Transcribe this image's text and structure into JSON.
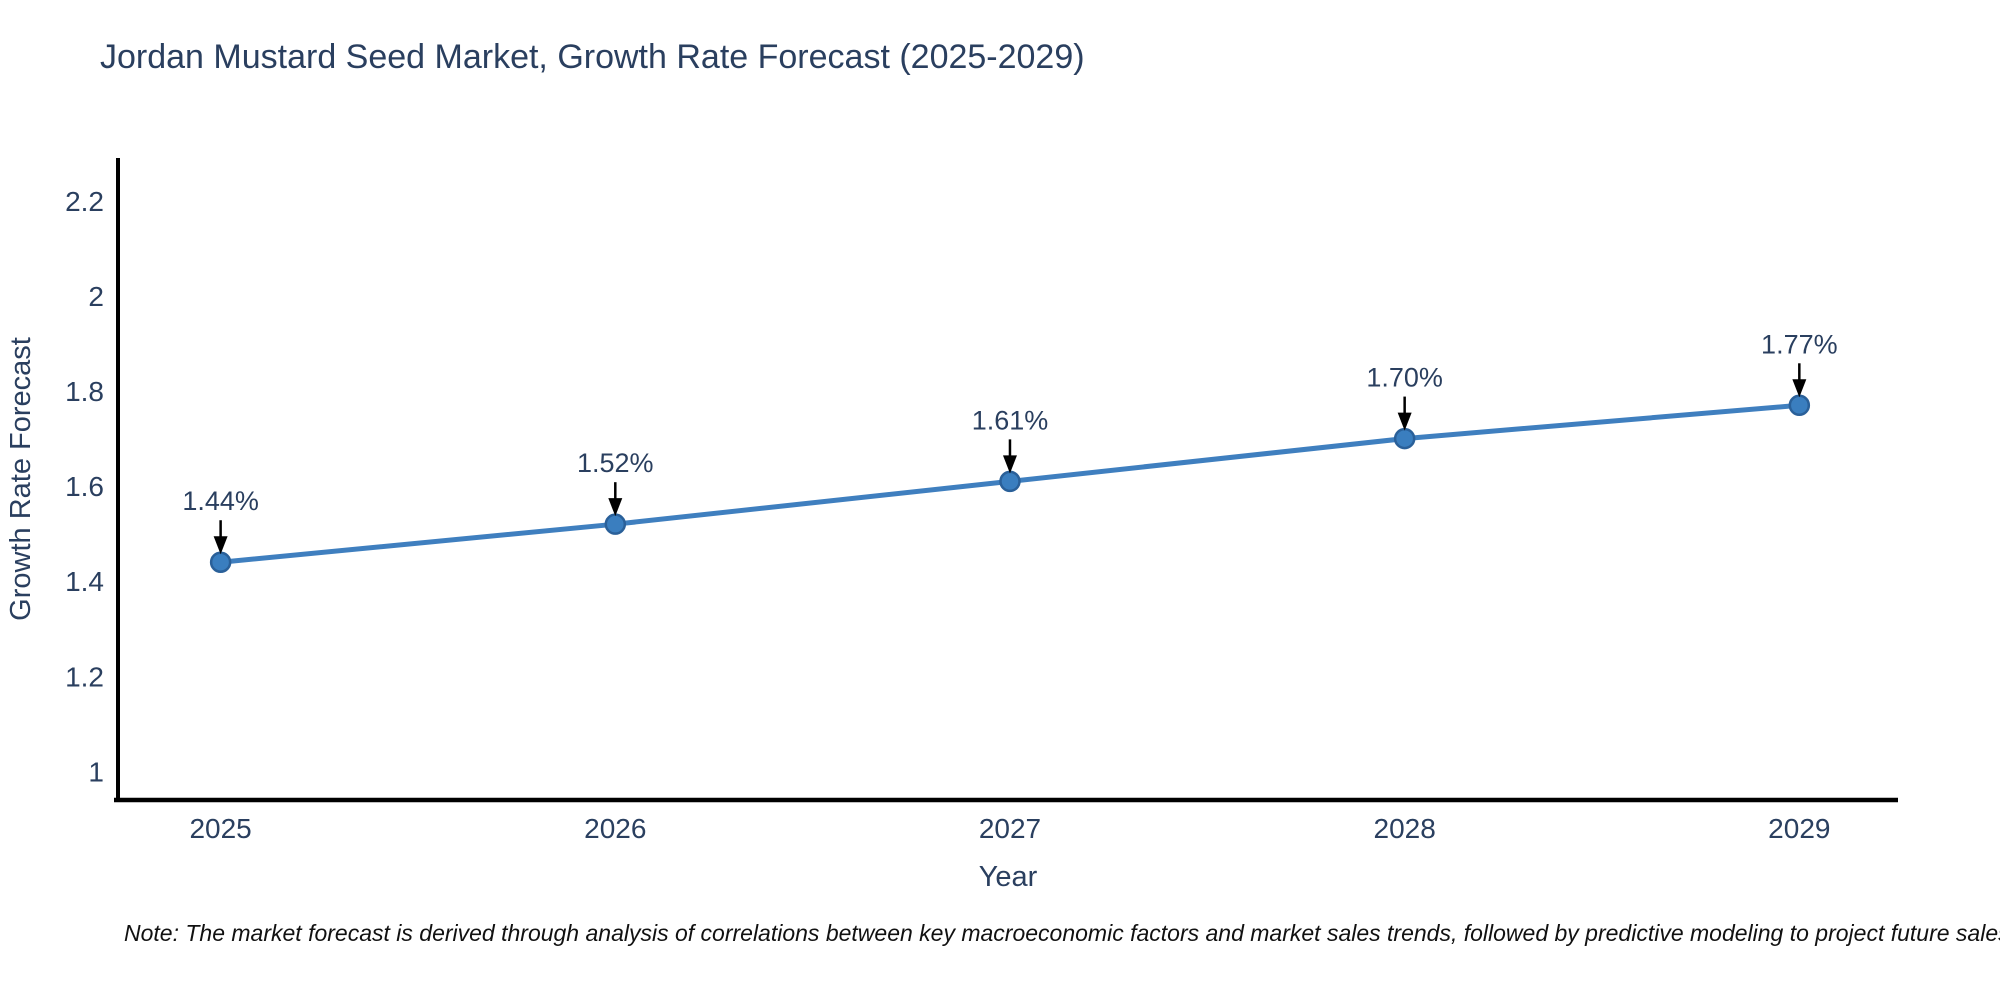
{
  "title": "Jordan Mustard Seed Market, Growth Rate Forecast (2025-2029)",
  "note": "Note: The market forecast is derived through analysis of correlations between key macroeconomic factors and market sales trends, followed by predictive modeling to project future sales",
  "colors": {
    "background": "#ffffff",
    "title_text": "#2a3f5f",
    "tick_text": "#2a3f5f",
    "axis_line": "#000000",
    "series_line": "#3f7fbf",
    "marker_fill": "#3a7ebf",
    "marker_edge": "#2a6099",
    "annotation_text": "#2a3f5f",
    "arrow": "#000000",
    "note_text": "#111111"
  },
  "chart_data": {
    "type": "line",
    "title": "Jordan Mustard Seed Market, Growth Rate Forecast (2025-2029)",
    "xlabel": "Year",
    "ylabel": "Growth Rate Forecast",
    "x": [
      2025,
      2026,
      2027,
      2028,
      2029
    ],
    "series": [
      {
        "name": "Growth Rate Forecast",
        "values": [
          1.44,
          1.52,
          1.61,
          1.7,
          1.77
        ]
      }
    ],
    "point_labels": [
      "1.44%",
      "1.52%",
      "1.61%",
      "1.70%",
      "1.77%"
    ],
    "xticks": [
      2025,
      2026,
      2027,
      2028,
      2029
    ],
    "yticks": [
      1,
      1.2,
      1.4,
      1.6,
      1.8,
      2,
      2.2
    ],
    "xlim": [
      2024.74,
      2029.25
    ],
    "ylim": [
      0.94,
      2.29
    ],
    "grid": false,
    "legend_position": "none",
    "annotation_style": "value-label-with-down-arrow"
  }
}
